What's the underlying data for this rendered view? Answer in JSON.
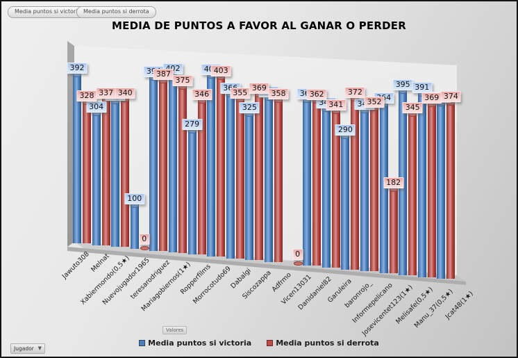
{
  "toolbar": {
    "buttons": [
      {
        "label": "Media puntos si victoria"
      },
      {
        "label": "Media puntos si derrota"
      }
    ]
  },
  "title": "MEDIA DE PUNTOS A FAVOR AL GANAR O PERDER",
  "chart_data": {
    "type": "bar",
    "style": "3d-cylinder",
    "title": "MEDIA DE PUNTOS A FAVOR AL GANAR O PERDER",
    "legend_position": "bottom",
    "grid": false,
    "ylim": [
      0,
      420
    ],
    "categories": [
      "Jawuto308",
      "Melnat",
      "Xabiermondo(0,5★)",
      "Nuevojugador1965",
      "teresarodriguez",
      "Mariagobiernos(1★)",
      "Ropperfilms",
      "Morrocotudo69",
      "Dabalgi",
      "Siscozappa",
      "Adfrmo",
      "Vicen13031",
      "Danidaniel82",
      "Garuleira",
      "baronrojo_",
      "Informepelicano",
      "Josevicentet123(1★)",
      "Melisafe(0,5★)",
      "Manu_37(0,5★)",
      "Jcat48(1★)"
    ],
    "series": [
      {
        "name": "Media puntos si victoria",
        "color": "#4a7ebb",
        "values": [
          392,
          304,
          334,
          100,
          394,
          402,
          279,
          405,
          366,
          325,
          363,
          0,
          364,
          346,
          290,
          348,
          364,
          395,
          391,
          373
        ],
        "not_visible_indices": [
          11
        ]
      },
      {
        "name": "Media puntos si derrota",
        "color": "#bf4a47",
        "values": [
          328,
          337,
          340,
          0,
          387,
          375,
          346,
          403,
          355,
          369,
          358,
          0,
          362,
          341,
          372,
          352,
          182,
          345,
          369,
          374
        ]
      }
    ]
  },
  "legend": {
    "title": "Valores",
    "items": [
      {
        "label": "Media puntos si victoria",
        "color": "#4a7ebb"
      },
      {
        "label": "Media puntos si derrota",
        "color": "#bf4a47"
      }
    ]
  },
  "controls": {
    "jugador_dropdown": "Jugador"
  }
}
